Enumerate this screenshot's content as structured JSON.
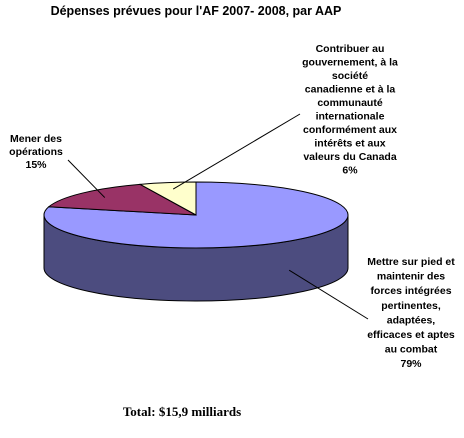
{
  "chart_data": {
    "type": "pie",
    "title": "Dépenses prévues pour l'AF 2007- 2008, par AAP",
    "footnote": "Total: $15,9 milliards",
    "slices": [
      {
        "key": "pied",
        "label_lines": [
          "Mettre sur pied et",
          "maintenir des",
          "forces intégrées",
          "pertinentes,",
          "adaptées,",
          "efficaces et aptes",
          "au combat"
        ],
        "value_label": "79%",
        "value": 79,
        "color": "#9999ff",
        "side_color": "#4c4c7f"
      },
      {
        "key": "operations",
        "label_lines": [
          "Mener des",
          "opérations"
        ],
        "value_label": "15%",
        "value": 15,
        "color": "#993366",
        "side_color": "#4c1933"
      },
      {
        "key": "contribuer",
        "label_lines": [
          "Contribuer au",
          "gouvernement, à la",
          "société",
          "canadienne et à la",
          "communauté",
          "internationale",
          "conformément aux",
          "intérêts et aux",
          "valeurs du Canada"
        ],
        "value_label": "6%",
        "value": 6,
        "color": "#ffffcc",
        "side_color": "#7f7f66"
      }
    ]
  }
}
